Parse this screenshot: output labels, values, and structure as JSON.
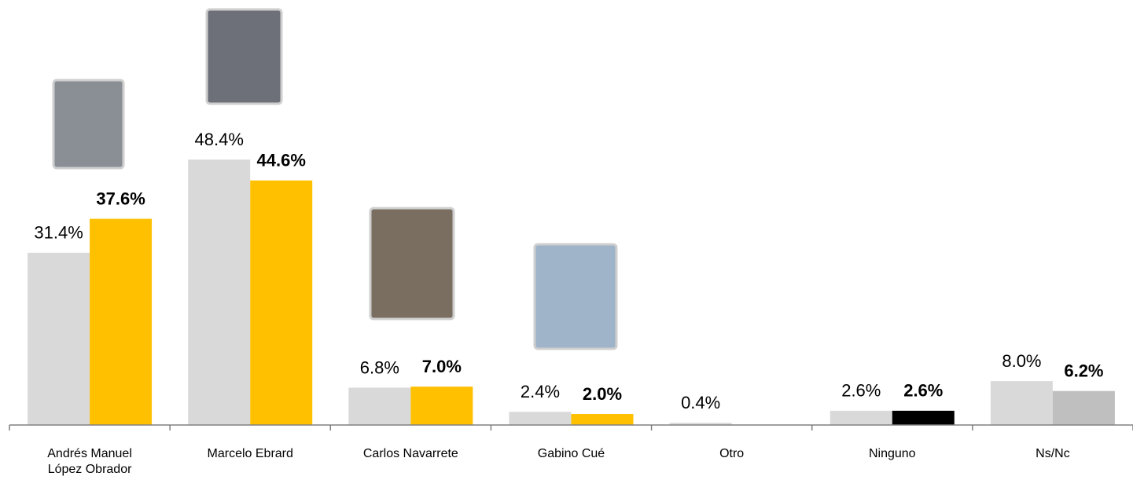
{
  "chart_data": {
    "type": "bar",
    "categories": [
      "Andrés Manuel López Obrador",
      "Marcelo Ebrard",
      "Carlos Navarrete",
      "Gabino Cué",
      "Otro",
      "Ninguno",
      "Ns/Nc"
    ],
    "series": [
      {
        "color": "#d9d9d9",
        "values": [
          31.4,
          48.4,
          6.8,
          2.4,
          0.4,
          2.6,
          8.0
        ],
        "value_labels": [
          "31.4%",
          "48.4%",
          "6.8%",
          "2.4%",
          "0.4%",
          "2.6%",
          "8.0%"
        ]
      },
      {
        "color": "#ffc000",
        "colors": [
          "#ffc000",
          "#ffc000",
          "#ffc000",
          "#ffc000",
          null,
          "#000000",
          "#bfbfbf"
        ],
        "values": [
          37.6,
          44.6,
          7.0,
          2.0,
          null,
          2.6,
          6.2
        ],
        "value_labels": [
          "37.6%",
          "44.6%",
          "7.0%",
          "2.0%",
          null,
          "2.6%",
          "6.2%"
        ]
      }
    ]
  }
}
